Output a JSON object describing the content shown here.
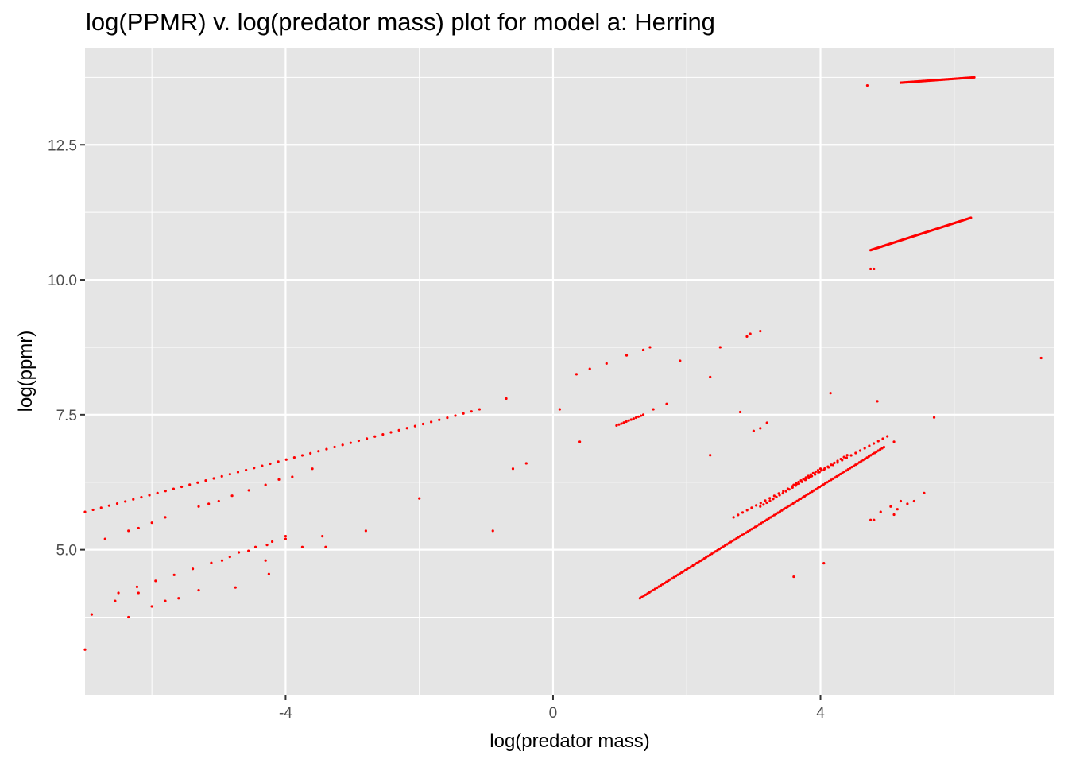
{
  "chart_data": {
    "type": "scatter",
    "title": "log(PPMR) v. log(predator mass) plot for model a: Herring",
    "xlabel": "log(predator mass)",
    "ylabel": "log(ppmr)",
    "xlim": [
      -7.0,
      7.5
    ],
    "ylim": [
      2.3,
      14.3
    ],
    "xticks": [
      -4,
      0,
      4
    ],
    "yticks": [
      5.0,
      7.5,
      10.0,
      12.5
    ],
    "x_tick_labels": [
      "-4",
      "0",
      "4"
    ],
    "y_tick_labels": [
      "5.0",
      "7.5",
      "10.0",
      "12.5"
    ],
    "grid": true,
    "legend": "none",
    "colors": {
      "points": "#ff0000",
      "panel": "#e5e5e5",
      "grid": "#ffffff"
    },
    "series": [
      {
        "points": [
          [
            -7.0,
            3.15
          ],
          [
            -6.9,
            3.8
          ],
          [
            -6.7,
            5.2
          ],
          [
            -6.55,
            4.05
          ],
          [
            -6.35,
            5.35
          ],
          [
            -6.35,
            3.75
          ],
          [
            -6.2,
            5.4
          ],
          [
            -6.2,
            4.2
          ],
          [
            -6.0,
            5.5
          ],
          [
            -6.0,
            3.95
          ],
          [
            -5.8,
            5.6
          ],
          [
            -5.8,
            4.05
          ],
          [
            -5.6,
            4.1
          ],
          [
            -5.3,
            5.8
          ],
          [
            -5.3,
            4.25
          ],
          [
            -5.15,
            5.85
          ],
          [
            -5.0,
            5.9
          ],
          [
            -4.95,
            4.8
          ],
          [
            -4.8,
            6.0
          ],
          [
            -4.75,
            4.3
          ],
          [
            -4.7,
            4.95
          ],
          [
            -4.55,
            6.1
          ],
          [
            -4.45,
            5.05
          ],
          [
            -4.3,
            6.2
          ],
          [
            -4.3,
            4.8
          ],
          [
            -4.25,
            4.55
          ],
          [
            -4.2,
            5.15
          ],
          [
            -4.1,
            6.3
          ],
          [
            -4.0,
            5.25
          ],
          [
            -3.9,
            6.35
          ],
          [
            -3.75,
            5.05
          ],
          [
            -3.6,
            6.5
          ],
          [
            -3.45,
            5.25
          ],
          [
            -3.4,
            5.05
          ],
          [
            -2.8,
            5.35
          ],
          [
            -2.0,
            5.95
          ],
          [
            -0.9,
            5.35
          ],
          [
            -0.7,
            7.8
          ],
          [
            -0.6,
            6.5
          ],
          [
            -0.4,
            6.6
          ],
          [
            0.1,
            7.6
          ],
          [
            0.35,
            8.25
          ],
          [
            0.4,
            7.0
          ],
          [
            0.55,
            8.35
          ],
          [
            0.8,
            8.45
          ],
          [
            1.1,
            8.6
          ],
          [
            1.35,
            8.7
          ],
          [
            1.45,
            8.75
          ],
          [
            1.5,
            7.6
          ],
          [
            1.7,
            7.7
          ],
          [
            1.9,
            8.5
          ],
          [
            2.35,
            8.2
          ],
          [
            2.35,
            6.75
          ],
          [
            2.5,
            8.75
          ],
          [
            2.8,
            7.55
          ],
          [
            2.9,
            8.95
          ],
          [
            2.95,
            9.0
          ],
          [
            3.1,
            9.05
          ],
          [
            3.0,
            7.2
          ],
          [
            3.1,
            7.25
          ],
          [
            3.2,
            7.35
          ],
          [
            3.6,
            4.5
          ],
          [
            4.05,
            4.75
          ],
          [
            4.15,
            7.9
          ],
          [
            4.7,
            13.6
          ],
          [
            4.75,
            10.2
          ],
          [
            4.8,
            10.2
          ],
          [
            4.85,
            7.75
          ],
          [
            4.75,
            5.55
          ],
          [
            4.8,
            5.55
          ],
          [
            4.9,
            5.7
          ],
          [
            5.05,
            5.8
          ],
          [
            5.1,
            5.65
          ],
          [
            5.15,
            5.75
          ],
          [
            5.2,
            5.9
          ],
          [
            5.3,
            5.85
          ],
          [
            5.4,
            5.9
          ],
          [
            5.55,
            6.05
          ],
          [
            5.7,
            7.45
          ],
          [
            5.1,
            7.0
          ],
          [
            7.3,
            8.55
          ]
        ],
        "segments": [
          {
            "from": [
              -7.0,
              5.7
            ],
            "to": [
              -1.1,
              7.6
            ],
            "n": 50
          },
          {
            "from": [
              -6.5,
              4.2
            ],
            "to": [
              -4.0,
              5.2
            ],
            "n": 10
          },
          {
            "from": [
              0.95,
              7.3
            ],
            "to": [
              1.35,
              7.5
            ],
            "n": 12
          },
          {
            "from": [
              2.7,
              5.6
            ],
            "to": [
              5.0,
              7.1
            ],
            "n": 35
          },
          {
            "from": [
              3.1,
              5.8
            ],
            "to": [
              4.4,
              6.75
            ],
            "n": 28
          },
          {
            "from": [
              3.6,
              6.2
            ],
            "to": [
              4.0,
              6.5
            ],
            "n": 12
          },
          {
            "from": [
              1.3,
              4.1
            ],
            "to": [
              4.95,
              6.9
            ],
            "n": 130
          },
          {
            "from": [
              4.75,
              10.55
            ],
            "to": [
              6.25,
              11.15
            ],
            "n": 90
          },
          {
            "from": [
              5.2,
              13.65
            ],
            "to": [
              6.3,
              13.75
            ],
            "n": 55
          }
        ]
      }
    ]
  }
}
